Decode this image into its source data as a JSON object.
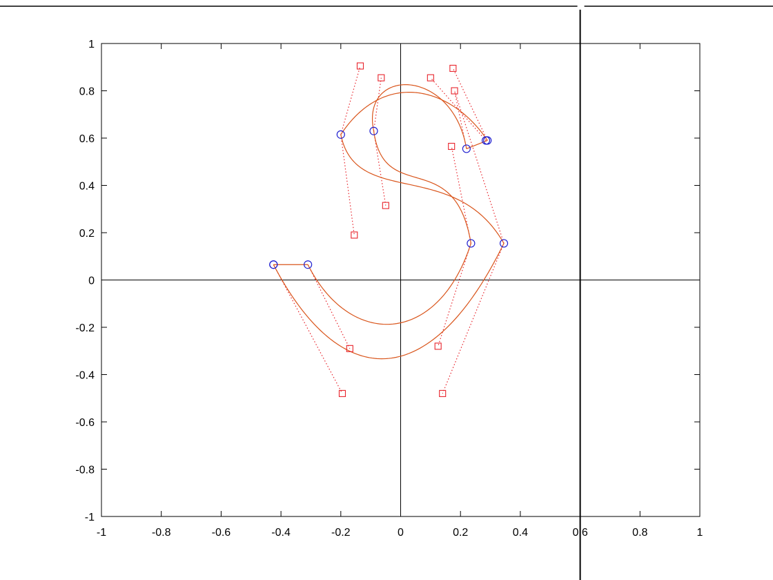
{
  "chart_data": {
    "type": "line",
    "xlim": [
      -1,
      1
    ],
    "ylim": [
      -1,
      1
    ],
    "xticks": [
      -1,
      -0.8,
      -0.6,
      -0.4,
      -0.2,
      0,
      0.2,
      0.4,
      0.6,
      0.8,
      1
    ],
    "yticks": [
      -1,
      -0.8,
      -0.6,
      -0.4,
      -0.2,
      0,
      0.2,
      0.4,
      0.6,
      0.8,
      1
    ],
    "xtick_labels": [
      "-1",
      "-0.8",
      "-0.6",
      "-0.4",
      "-0.2",
      "0",
      "0.2",
      "0.4",
      "0.6",
      "0.8",
      "1"
    ],
    "ytick_labels": [
      "-1",
      "-0.8",
      "-0.6",
      "-0.4",
      "-0.2",
      "0",
      "0.2",
      "0.4",
      "0.6",
      "0.8",
      "1"
    ],
    "grid": false,
    "axis_lines": {
      "x_zero": true,
      "y_zero": true,
      "vertical_cursor_x": 0.6
    },
    "colors": {
      "curve": "#d9541a",
      "anchor": "#1f1fd0",
      "control": "#e8222a",
      "axes": "#000000"
    },
    "series": [
      {
        "curves": [
          [
            [
              0.29,
              0.59
            ],
            [
              0.225,
              0.715
            ],
            [
              0.1,
              0.85
            ],
            [
              -0.075,
              0.855
            ],
            [
              -0.2,
              0.615
            ]
          ],
          [
            [
              -0.2,
              0.615
            ],
            [
              -0.15,
              0.3
            ],
            [
              0.18,
              0.52
            ],
            [
              0.345,
              0.155
            ]
          ],
          [
            [
              0.345,
              0.155
            ],
            [
              0.1,
              -0.48
            ],
            [
              -0.2,
              -0.48
            ],
            [
              -0.425,
              0.065
            ]
          ]
        ]
      },
      {
        "curves": [
          [
            [
              0.22,
              0.555
            ],
            [
              0.175,
              0.9
            ],
            [
              -0.135,
              0.905
            ],
            [
              -0.09,
              0.63
            ]
          ],
          [
            [
              -0.09,
              0.63
            ],
            [
              -0.055,
              0.31
            ],
            [
              0.18,
              0.57
            ],
            [
              0.235,
              0.155
            ]
          ],
          [
            [
              0.235,
              0.155
            ],
            [
              0.125,
              -0.28
            ],
            [
              -0.17,
              -0.29
            ],
            [
              -0.31,
              0.065
            ]
          ]
        ]
      }
    ],
    "straight_segments": [
      [
        [
          -0.425,
          0.065
        ],
        [
          -0.31,
          0.065
        ]
      ],
      [
        [
          0.22,
          0.555
        ],
        [
          0.29,
          0.59
        ]
      ]
    ],
    "anchor_points": [
      [
        0.29,
        0.59
      ],
      [
        0.285,
        0.59
      ],
      [
        -0.2,
        0.615
      ],
      [
        0.345,
        0.155
      ],
      [
        -0.425,
        0.065
      ],
      [
        -0.425,
        0.065
      ],
      [
        -0.31,
        0.065
      ],
      [
        0.235,
        0.155
      ],
      [
        -0.09,
        0.63
      ],
      [
        0.22,
        0.555
      ]
    ],
    "control_points": [
      [
        0.175,
        0.895
      ],
      [
        0.18,
        0.8
      ],
      [
        -0.065,
        0.855
      ],
      [
        0.1,
        0.855
      ],
      [
        -0.135,
        0.905
      ],
      [
        -0.155,
        0.19
      ],
      [
        -0.05,
        0.315
      ],
      [
        0.17,
        0.565
      ],
      [
        -0.17,
        -0.29
      ],
      [
        -0.195,
        -0.48
      ],
      [
        0.125,
        -0.28
      ],
      [
        0.14,
        -0.48
      ]
    ],
    "control_links": [
      [
        [
          0.29,
          0.59
        ],
        [
          0.175,
          0.895
        ]
      ],
      [
        [
          0.285,
          0.59
        ],
        [
          0.1,
          0.855
        ]
      ],
      [
        [
          -0.2,
          0.615
        ],
        [
          -0.135,
          0.905
        ]
      ],
      [
        [
          -0.2,
          0.615
        ],
        [
          -0.155,
          0.19
        ]
      ],
      [
        [
          -0.09,
          0.63
        ],
        [
          -0.065,
          0.855
        ]
      ],
      [
        [
          -0.09,
          0.63
        ],
        [
          -0.05,
          0.315
        ]
      ],
      [
        [
          0.22,
          0.555
        ],
        [
          0.18,
          0.8
        ]
      ],
      [
        [
          0.235,
          0.155
        ],
        [
          0.17,
          0.565
        ]
      ],
      [
        [
          0.345,
          0.155
        ],
        [
          0.18,
          0.8
        ]
      ],
      [
        [
          0.345,
          0.155
        ],
        [
          0.14,
          -0.48
        ]
      ],
      [
        [
          0.235,
          0.155
        ],
        [
          0.125,
          -0.28
        ]
      ],
      [
        [
          -0.31,
          0.065
        ],
        [
          -0.17,
          -0.29
        ]
      ],
      [
        [
          -0.425,
          0.065
        ],
        [
          -0.195,
          -0.48
        ]
      ]
    ]
  }
}
